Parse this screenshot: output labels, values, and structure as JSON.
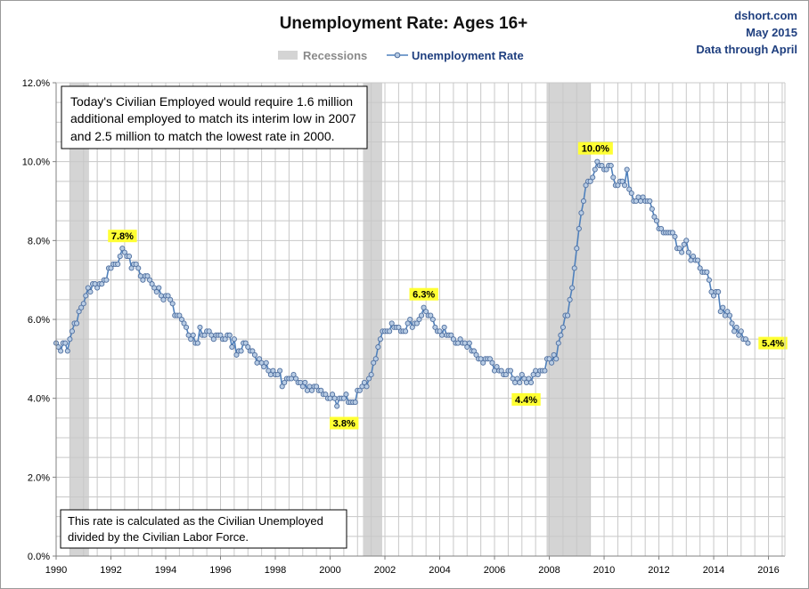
{
  "chart_data": {
    "type": "line",
    "title": "Unemployment Rate: Ages 16+",
    "source": [
      "dshort.com",
      "May 2015",
      "Data through April"
    ],
    "legend": [
      {
        "name": "Recessions",
        "color": "#d4d4d4"
      },
      {
        "name": "Unemployment Rate",
        "color": "#4f81bd"
      }
    ],
    "legend_position": "top-center",
    "grid": true,
    "xlim": [
      1990,
      2016.6
    ],
    "ylim": [
      0,
      12
    ],
    "x_ticks": [
      1990,
      1992,
      1994,
      1996,
      1998,
      2000,
      2002,
      2004,
      2006,
      2008,
      2010,
      2012,
      2014,
      2016
    ],
    "x_tick_labels": [
      "1990",
      "1992",
      "1994",
      "1996",
      "1998",
      "2000",
      "2002",
      "2004",
      "2006",
      "2008",
      "2010",
      "2012",
      "2014",
      "2016"
    ],
    "y_ticks": [
      0,
      2,
      4,
      6,
      8,
      10,
      12
    ],
    "y_tick_labels": [
      "0.0%",
      "2.0%",
      "4.0%",
      "6.0%",
      "8.0%",
      "10.0%",
      "12.0%"
    ],
    "recessions": [
      [
        1990.5,
        1991.2
      ],
      [
        2001.2,
        2001.9
      ],
      [
        2007.9,
        2009.5
      ]
    ],
    "annotations": [
      {
        "lines": [
          "Today's Civilian Employed would require  1.6 million",
          "additional employed to match its interim low in 2007",
          "and 2.5 million to match the lowest rate in 2000."
        ]
      },
      {
        "lines": [
          "This rate is calculated as the Civilian Unemployed",
          "divided by the Civilian Labor Force."
        ]
      }
    ],
    "callouts": [
      {
        "label": "7.8%",
        "x": 1992.42,
        "y": 7.8
      },
      {
        "label": "3.8%",
        "x": 2000.25,
        "y": 3.8
      },
      {
        "label": "6.3%",
        "x": 2003.42,
        "y": 6.3
      },
      {
        "label": "4.4%",
        "x": 2006.83,
        "y": 4.4
      },
      {
        "label": "10.0%",
        "x": 2009.75,
        "y": 10.0
      },
      {
        "label": "5.4%",
        "x": 2015.25,
        "y": 5.4
      }
    ],
    "series": [
      {
        "name": "Unemployment Rate",
        "x_start": 1990.0,
        "x_step_months": 1,
        "values": [
          5.4,
          5.3,
          5.2,
          5.4,
          5.4,
          5.2,
          5.5,
          5.7,
          5.9,
          5.9,
          6.2,
          6.3,
          6.4,
          6.6,
          6.8,
          6.7,
          6.9,
          6.9,
          6.8,
          6.9,
          6.9,
          7.0,
          7.0,
          7.3,
          7.3,
          7.4,
          7.4,
          7.4,
          7.6,
          7.8,
          7.7,
          7.6,
          7.6,
          7.3,
          7.4,
          7.4,
          7.3,
          7.1,
          7.0,
          7.1,
          7.1,
          7.0,
          6.9,
          6.8,
          6.7,
          6.8,
          6.6,
          6.5,
          6.6,
          6.6,
          6.5,
          6.4,
          6.1,
          6.1,
          6.1,
          6.0,
          5.9,
          5.8,
          5.6,
          5.5,
          5.6,
          5.4,
          5.4,
          5.8,
          5.6,
          5.6,
          5.7,
          5.7,
          5.6,
          5.5,
          5.6,
          5.6,
          5.6,
          5.5,
          5.5,
          5.6,
          5.6,
          5.3,
          5.5,
          5.1,
          5.2,
          5.2,
          5.4,
          5.4,
          5.3,
          5.2,
          5.2,
          5.1,
          4.9,
          5.0,
          4.9,
          4.8,
          4.9,
          4.7,
          4.6,
          4.7,
          4.6,
          4.6,
          4.7,
          4.3,
          4.4,
          4.5,
          4.5,
          4.5,
          4.6,
          4.5,
          4.4,
          4.4,
          4.3,
          4.4,
          4.2,
          4.3,
          4.2,
          4.3,
          4.3,
          4.2,
          4.2,
          4.1,
          4.1,
          4.0,
          4.0,
          4.1,
          4.0,
          3.8,
          4.0,
          4.0,
          4.0,
          4.1,
          3.9,
          3.9,
          3.9,
          3.9,
          4.2,
          4.2,
          4.3,
          4.4,
          4.3,
          4.5,
          4.6,
          4.9,
          5.0,
          5.3,
          5.5,
          5.7,
          5.7,
          5.7,
          5.7,
          5.9,
          5.8,
          5.8,
          5.8,
          5.7,
          5.7,
          5.7,
          5.9,
          6.0,
          5.8,
          5.9,
          5.9,
          6.0,
          6.1,
          6.3,
          6.2,
          6.1,
          6.1,
          6.0,
          5.8,
          5.7,
          5.7,
          5.6,
          5.8,
          5.6,
          5.6,
          5.6,
          5.5,
          5.4,
          5.4,
          5.5,
          5.4,
          5.4,
          5.3,
          5.4,
          5.2,
          5.2,
          5.1,
          5.0,
          5.0,
          4.9,
          5.0,
          5.0,
          5.0,
          4.9,
          4.7,
          4.8,
          4.7,
          4.7,
          4.6,
          4.6,
          4.7,
          4.7,
          4.5,
          4.4,
          4.5,
          4.4,
          4.6,
          4.5,
          4.4,
          4.5,
          4.4,
          4.6,
          4.7,
          4.6,
          4.7,
          4.7,
          4.7,
          5.0,
          5.0,
          4.9,
          5.1,
          5.0,
          5.4,
          5.6,
          5.8,
          6.1,
          6.1,
          6.5,
          6.8,
          7.3,
          7.8,
          8.3,
          8.7,
          9.0,
          9.4,
          9.5,
          9.5,
          9.6,
          9.8,
          10.0,
          9.9,
          9.9,
          9.8,
          9.8,
          9.9,
          9.9,
          9.6,
          9.4,
          9.4,
          9.5,
          9.5,
          9.4,
          9.8,
          9.3,
          9.2,
          9.0,
          9.0,
          9.1,
          9.0,
          9.1,
          9.0,
          9.0,
          9.0,
          8.8,
          8.6,
          8.5,
          8.3,
          8.3,
          8.2,
          8.2,
          8.2,
          8.2,
          8.2,
          8.1,
          7.8,
          7.8,
          7.7,
          7.9,
          8.0,
          7.7,
          7.5,
          7.6,
          7.5,
          7.5,
          7.3,
          7.2,
          7.2,
          7.2,
          7.0,
          6.7,
          6.6,
          6.7,
          6.7,
          6.2,
          6.3,
          6.1,
          6.2,
          6.1,
          5.9,
          5.7,
          5.8,
          5.6,
          5.7,
          5.5,
          5.5,
          5.4
        ]
      }
    ]
  }
}
